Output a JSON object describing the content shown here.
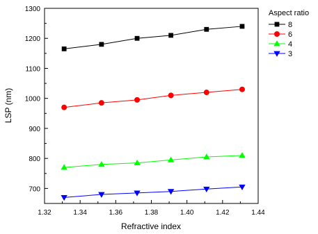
{
  "chart_data": {
    "type": "line",
    "title": "",
    "xlabel": "Refractive index",
    "ylabel": "LSP (nm)",
    "xlim": [
      1.32,
      1.44
    ],
    "ylim": [
      650,
      1300
    ],
    "xticks": [
      "1.32",
      "1.34",
      "1.36",
      "1.38",
      "1.40",
      "1.42",
      "1.44"
    ],
    "yticks": [
      "700",
      "800",
      "900",
      "1000",
      "1100",
      "1200",
      "1300"
    ],
    "x": [
      1.331,
      1.352,
      1.372,
      1.391,
      1.411,
      1.431
    ],
    "legend": {
      "title": "Aspect ratio",
      "placement": "outside-top-right"
    },
    "grid": false,
    "series": [
      {
        "name": "8",
        "color": "#000000",
        "marker": "square",
        "values": [
          1165,
          1180,
          1200,
          1210,
          1230,
          1240
        ]
      },
      {
        "name": "6",
        "color": "#ff0000",
        "marker": "circle",
        "values": [
          970,
          985,
          995,
          1010,
          1020,
          1030
        ]
      },
      {
        "name": "4",
        "color": "#00ff00",
        "marker": "triangle-up",
        "values": [
          770,
          780,
          785,
          795,
          805,
          810
        ]
      },
      {
        "name": "3",
        "color": "#0000ff",
        "marker": "triangle-down",
        "values": [
          670,
          680,
          685,
          690,
          698,
          705
        ]
      }
    ]
  }
}
